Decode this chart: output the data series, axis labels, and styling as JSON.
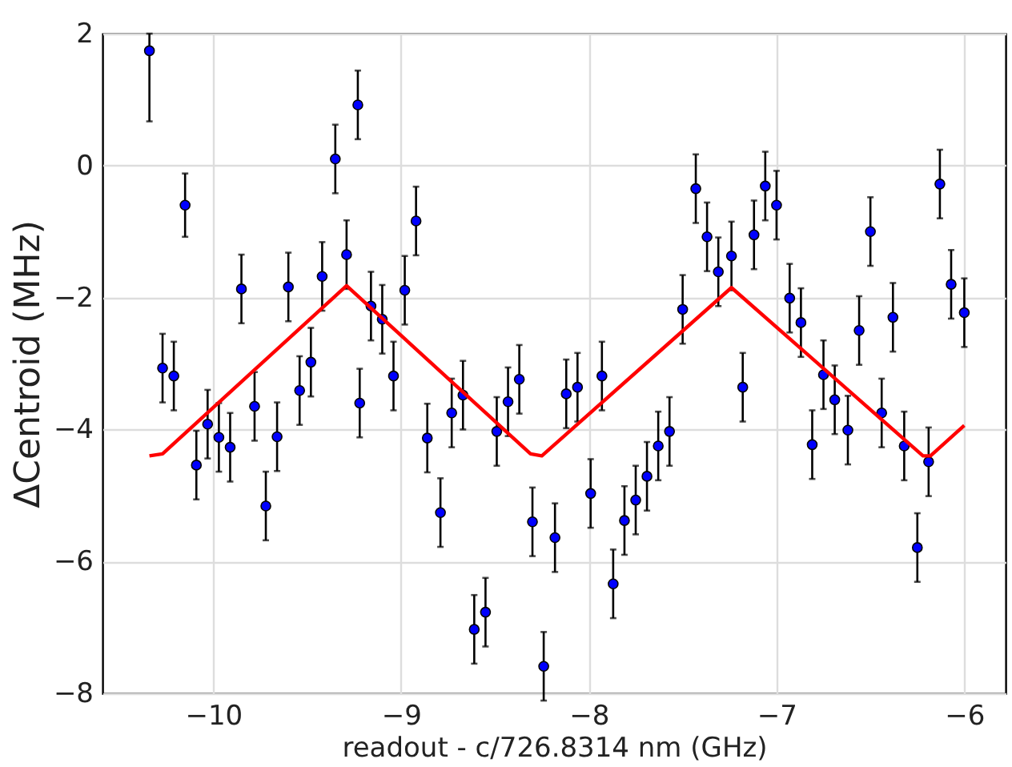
{
  "chart_data": {
    "type": "scatter",
    "xlabel": "readout - c/726.8314 nm (GHz)",
    "ylabel": "ΔCentroid (MHz)",
    "xlim": [
      -10.59,
      -5.78
    ],
    "xticks": [
      -10,
      -9,
      -8,
      -7,
      -6
    ],
    "ylim": [
      -8,
      2
    ],
    "yticks": [
      -8,
      -6,
      -4,
      -2,
      0,
      2
    ],
    "grid": true,
    "series": [
      {
        "marker": "circle",
        "color": "#0000ff",
        "x": [
          -10.34,
          -10.27,
          -10.21,
          -10.15,
          -10.09,
          -10.03,
          -9.97,
          -9.91,
          -9.85,
          -9.78,
          -9.72,
          -9.66,
          -9.6,
          -9.54,
          -9.48,
          -9.42,
          -9.35,
          -9.29,
          -9.23,
          -9.22,
          -9.16,
          -9.1,
          -9.04,
          -8.98,
          -8.92,
          -8.86,
          -8.79,
          -8.73,
          -8.67,
          -8.61,
          -8.55,
          -8.49,
          -8.43,
          -8.37,
          -8.3,
          -8.24,
          -8.18,
          -8.12,
          -8.06,
          -7.99,
          -7.93,
          -7.87,
          -7.81,
          -7.75,
          -7.69,
          -7.63,
          -7.57,
          -7.5,
          -7.43,
          -7.37,
          -7.31,
          -7.24,
          -7.18,
          -7.12,
          -7.06,
          -7.0,
          -6.93,
          -6.87,
          -6.81,
          -6.75,
          -6.69,
          -6.62,
          -6.56,
          -6.5,
          -6.44,
          -6.38,
          -6.32,
          -6.25,
          -6.19,
          -6.13,
          -6.07,
          -6.0
        ],
        "values": [
          1.74,
          -3.07,
          -3.19,
          -0.6,
          -4.54,
          -3.92,
          -4.12,
          -4.27,
          -1.87,
          -3.65,
          -5.16,
          -4.11,
          -1.84,
          -3.41,
          -2.98,
          -1.68,
          0.1,
          -1.35,
          0.92,
          -3.6,
          -2.13,
          -2.33,
          -3.19,
          -1.89,
          -0.84,
          -4.13,
          -5.26,
          -3.75,
          -3.48,
          -7.03,
          -6.77,
          -4.03,
          -3.58,
          -3.24,
          -5.4,
          -7.59,
          -5.64,
          -3.46,
          -3.36,
          -4.97,
          -3.19,
          -6.34,
          -5.38,
          -5.07,
          -4.71,
          -4.25,
          -4.03,
          -2.18,
          -0.35,
          -1.08,
          -1.61,
          -1.37,
          -3.36,
          -1.05,
          -0.31,
          -0.6,
          -2.01,
          -2.38,
          -4.23,
          -3.17,
          -3.55,
          -4.01,
          -2.5,
          -1.0,
          -3.75,
          -2.3,
          -4.25,
          -5.79,
          -4.49,
          -0.28,
          -1.8,
          -2.23
        ],
        "errors": [
          [
            0.67,
            2.0
          ],
          0.52,
          0.52,
          0.48,
          0.52,
          0.52,
          0.52,
          0.52,
          0.52,
          0.52,
          0.52,
          0.52,
          0.52,
          0.52,
          0.52,
          0.52,
          0.52,
          0.52,
          0.52,
          0.52,
          0.52,
          0.52,
          0.52,
          0.52,
          0.52,
          0.52,
          0.52,
          0.52,
          0.52,
          0.52,
          0.52,
          0.52,
          0.52,
          0.52,
          0.52,
          0.52,
          0.52,
          0.52,
          0.52,
          0.52,
          0.52,
          0.52,
          0.52,
          0.52,
          0.52,
          0.52,
          0.52,
          0.52,
          0.52,
          0.52,
          0.52,
          0.52,
          0.52,
          0.52,
          0.52,
          0.52,
          0.52,
          0.52,
          0.52,
          0.52,
          0.52,
          0.52,
          0.52,
          0.52,
          0.52,
          0.52,
          0.52,
          0.52,
          0.52,
          0.52,
          0.52,
          0.52
        ]
      },
      {
        "type": "line",
        "color": "#ff0000",
        "line_style": "solid",
        "x": [
          -10.34,
          -10.27,
          -9.29,
          -8.31,
          -8.25,
          -7.24,
          -6.22,
          -6.18,
          -6.0
        ],
        "values": [
          -4.4,
          -4.37,
          -1.82,
          -4.37,
          -4.4,
          -1.85,
          -4.4,
          -4.4,
          -3.94
        ]
      }
    ]
  }
}
